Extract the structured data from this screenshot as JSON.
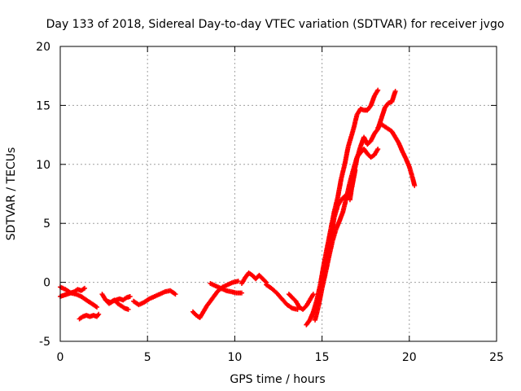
{
  "chart_data": {
    "type": "scatter",
    "title": "Day 133 of 2018, Sidereal Day-to-day VTEC variation (SDTVAR) for receiver jvgo",
    "xlabel": "GPS time / hours",
    "ylabel": "SDTVAR / TECUs",
    "xlim": [
      0,
      25
    ],
    "ylim": [
      -5,
      20
    ],
    "xticks": [
      "0",
      "5",
      "10",
      "15",
      "20",
      "25"
    ],
    "yticks": [
      "-5",
      "0",
      "5",
      "10",
      "15",
      "20"
    ],
    "grid": true,
    "marker": "+",
    "color": "#ff0000",
    "series": [
      {
        "x": [
          0.0,
          0.2,
          0.4,
          0.6,
          0.8,
          1.0,
          1.2,
          1.4
        ],
        "y": [
          -1.2,
          -1.1,
          -1.0,
          -0.9,
          -0.8,
          -0.6,
          -0.7,
          -0.5
        ]
      },
      {
        "x": [
          0.0,
          0.3,
          0.6,
          0.9,
          1.2,
          1.5,
          1.8,
          2.1
        ],
        "y": [
          -0.4,
          -0.6,
          -0.9,
          -1.0,
          -1.2,
          -1.5,
          -1.8,
          -2.1
        ]
      },
      {
        "x": [
          1.1,
          1.3,
          1.5,
          1.7,
          1.9,
          2.1,
          2.2
        ],
        "y": [
          -3.1,
          -2.9,
          -2.8,
          -2.9,
          -2.8,
          -2.9,
          -2.7
        ]
      },
      {
        "x": [
          2.4,
          2.6,
          2.8,
          3.0,
          3.2,
          3.4,
          3.6,
          3.8,
          4.0
        ],
        "y": [
          -1.0,
          -1.5,
          -1.8,
          -1.6,
          -1.5,
          -1.4,
          -1.5,
          -1.3,
          -1.2
        ]
      },
      {
        "x": [
          2.7,
          2.9,
          3.1,
          3.3,
          3.5,
          3.7,
          3.9
        ],
        "y": [
          -1.6,
          -1.7,
          -1.5,
          -1.8,
          -2.0,
          -2.2,
          -2.3
        ]
      },
      {
        "x": [
          4.2,
          4.5,
          4.8,
          5.1,
          5.4,
          5.7,
          6.0,
          6.3,
          6.6
        ],
        "y": [
          -1.6,
          -1.9,
          -1.7,
          -1.4,
          -1.2,
          -1.0,
          -0.8,
          -0.7,
          -1.0
        ]
      },
      {
        "x": [
          7.6,
          7.8,
          8.0,
          8.2,
          8.4,
          8.7,
          9.0,
          9.3,
          9.6,
          9.9,
          10.2
        ],
        "y": [
          -2.5,
          -2.8,
          -3.0,
          -2.5,
          -2.0,
          -1.4,
          -0.8,
          -0.4,
          -0.2,
          0.0,
          0.1
        ]
      },
      {
        "x": [
          8.6,
          8.9,
          9.2,
          9.5,
          9.8,
          10.1,
          10.4
        ],
        "y": [
          -0.1,
          -0.3,
          -0.5,
          -0.7,
          -0.8,
          -0.9,
          -0.9
        ]
      },
      {
        "x": [
          10.4,
          10.6,
          10.8,
          11.0,
          11.2,
          11.4,
          11.6,
          11.8
        ],
        "y": [
          -0.1,
          0.4,
          0.8,
          0.6,
          0.3,
          0.6,
          0.3,
          0.0
        ]
      },
      {
        "x": [
          11.8,
          12.1,
          12.4,
          12.7,
          13.0,
          13.3,
          13.6
        ],
        "y": [
          -0.2,
          -0.5,
          -0.9,
          -1.4,
          -1.9,
          -2.2,
          -2.3
        ]
      },
      {
        "x": [
          13.1,
          13.3,
          13.5,
          13.7,
          13.9,
          14.1,
          14.3,
          14.5
        ],
        "y": [
          -1.0,
          -1.3,
          -1.6,
          -2.1,
          -2.3,
          -2.0,
          -1.5,
          -1.0
        ]
      },
      {
        "x": [
          14.1,
          14.3,
          14.5,
          14.7,
          14.9,
          15.1,
          15.3,
          15.5,
          15.7,
          15.9,
          16.1,
          16.3,
          16.5,
          16.8,
          17.0,
          17.2,
          17.4,
          17.6,
          17.8,
          18.0,
          18.2
        ],
        "y": [
          -3.6,
          -3.2,
          -2.5,
          -1.5,
          -0.2,
          1.5,
          3.0,
          4.5,
          6.0,
          7.2,
          8.8,
          10.0,
          11.5,
          13.0,
          14.2,
          14.7,
          14.6,
          14.6,
          15.0,
          15.8,
          16.3
        ]
      },
      {
        "x": [
          14.6,
          14.8,
          15.0,
          15.2,
          15.4,
          15.6,
          15.8,
          16.0,
          16.2,
          16.4,
          16.6,
          16.8,
          17.0,
          17.2,
          17.4,
          17.6,
          17.8,
          18.0,
          18.2
        ],
        "y": [
          -3.2,
          -2.0,
          -0.5,
          0.8,
          2.2,
          3.5,
          4.5,
          5.2,
          6.0,
          7.2,
          8.5,
          9.6,
          10.6,
          11.0,
          11.3,
          10.9,
          10.6,
          10.8,
          11.3
        ]
      },
      {
        "x": [
          15.1,
          15.3,
          15.5,
          15.7,
          15.9,
          16.1,
          16.3,
          16.5,
          16.7,
          16.9
        ],
        "y": [
          0.5,
          2.0,
          3.8,
          5.5,
          6.5,
          7.0,
          7.3,
          7.2,
          8.0,
          9.5
        ]
      },
      {
        "x": [
          16.6,
          16.8,
          17.0,
          17.2,
          17.4,
          17.6,
          17.8,
          18.0,
          18.2,
          18.4,
          18.6,
          18.8,
          19.0,
          19.2
        ],
        "y": [
          7.0,
          9.0,
          10.5,
          11.5,
          12.3,
          11.7,
          12.0,
          12.6,
          13.0,
          13.9,
          14.8,
          15.2,
          15.3,
          16.2
        ]
      },
      {
        "x": [
          18.2,
          18.4,
          18.6,
          18.8,
          19.0,
          19.2,
          19.4,
          19.6,
          19.8,
          20.0,
          20.2,
          20.3
        ],
        "y": [
          13.1,
          13.4,
          13.2,
          13.0,
          12.8,
          12.3,
          11.8,
          11.1,
          10.5,
          9.8,
          8.8,
          8.2
        ]
      }
    ]
  }
}
